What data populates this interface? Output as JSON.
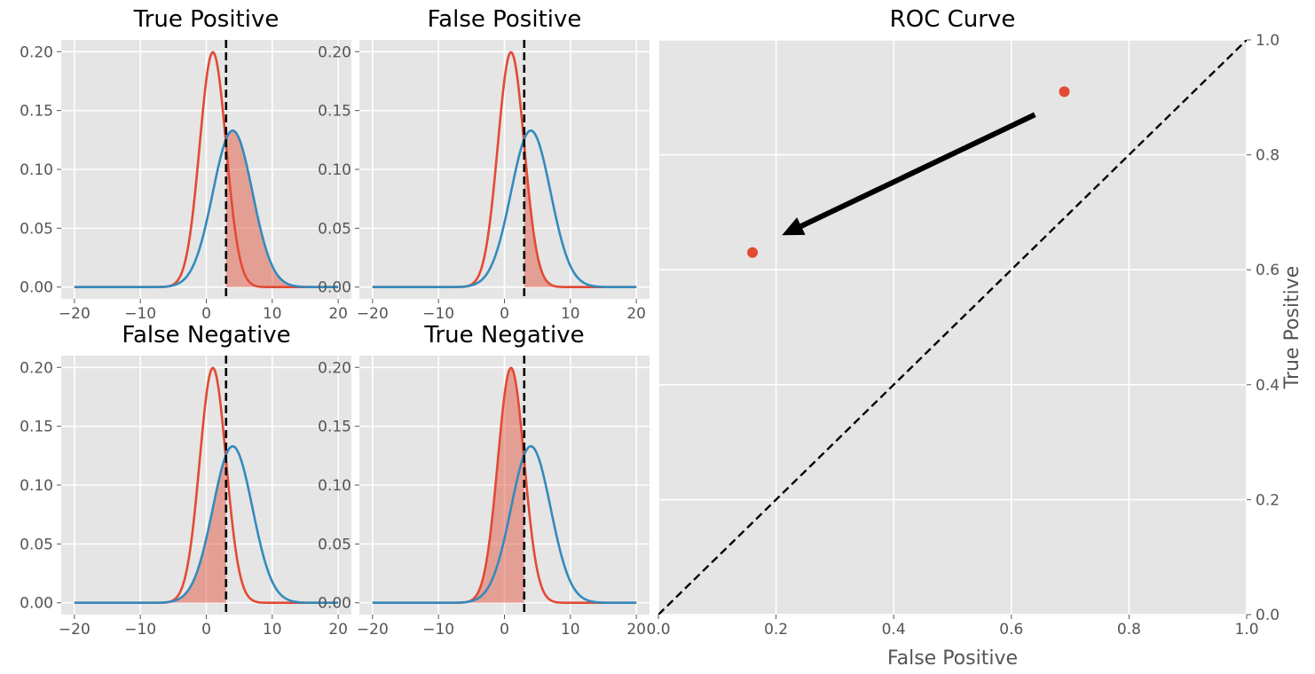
{
  "figure": {
    "background": "#ffffff",
    "axes_background": "#e5e5e5",
    "grid_color": "#ffffff"
  },
  "chart_data": [
    {
      "type": "line",
      "id": "panel-true-positive",
      "title": "True Positive",
      "xlim": [
        -20,
        20
      ],
      "ylim": [
        0,
        0.2
      ],
      "xticks": [
        -20,
        -10,
        0,
        10,
        20
      ],
      "yticks": [
        0.0,
        0.05,
        0.1,
        0.15,
        0.2
      ],
      "xtick_labels": [
        "−20",
        "−10",
        "0",
        "10",
        "20"
      ],
      "ytick_labels": [
        "0.00",
        "0.05",
        "0.10",
        "0.15",
        "0.20"
      ],
      "series": [
        {
          "distribution": "normal",
          "mean": 1,
          "std": 2,
          "color": "#e24a33"
        },
        {
          "distribution": "normal",
          "mean": 4,
          "std": 3,
          "color": "#348abd"
        }
      ],
      "threshold": 3,
      "shaded": {
        "series": 1,
        "from": 3,
        "to": 20,
        "color": "#e24a33"
      }
    },
    {
      "type": "line",
      "id": "panel-false-positive",
      "title": "False Positive",
      "xlim": [
        -20,
        20
      ],
      "ylim": [
        0,
        0.2
      ],
      "xticks": [
        -20,
        -10,
        0,
        10,
        20
      ],
      "yticks": [
        0.0,
        0.05,
        0.1,
        0.15,
        0.2
      ],
      "xtick_labels": [
        "−20",
        "−10",
        "0",
        "10",
        "20"
      ],
      "ytick_labels": [
        "0.00",
        "0.05",
        "0.10",
        "0.15",
        "0.20"
      ],
      "series": [
        {
          "distribution": "normal",
          "mean": 1,
          "std": 2,
          "color": "#e24a33"
        },
        {
          "distribution": "normal",
          "mean": 4,
          "std": 3,
          "color": "#348abd"
        }
      ],
      "threshold": 3,
      "shaded": {
        "series": 0,
        "from": 3,
        "to": 20,
        "color": "#e24a33"
      }
    },
    {
      "type": "line",
      "id": "panel-false-negative",
      "title": "False Negative",
      "xlim": [
        -20,
        20
      ],
      "ylim": [
        0,
        0.2
      ],
      "xticks": [
        -20,
        -10,
        0,
        10,
        20
      ],
      "yticks": [
        0.0,
        0.05,
        0.1,
        0.15,
        0.2
      ],
      "xtick_labels": [
        "−20",
        "−10",
        "0",
        "10",
        "20"
      ],
      "ytick_labels": [
        "0.00",
        "0.05",
        "0.10",
        "0.15",
        "0.20"
      ],
      "series": [
        {
          "distribution": "normal",
          "mean": 1,
          "std": 2,
          "color": "#e24a33"
        },
        {
          "distribution": "normal",
          "mean": 4,
          "std": 3,
          "color": "#348abd"
        }
      ],
      "threshold": 3,
      "shaded": {
        "series": 1,
        "from": -20,
        "to": 3,
        "color": "#e24a33"
      }
    },
    {
      "type": "line",
      "id": "panel-true-negative",
      "title": "True Negative",
      "xlim": [
        -20,
        20
      ],
      "ylim": [
        0,
        0.2
      ],
      "xticks": [
        -20,
        -10,
        0,
        10,
        20
      ],
      "yticks": [
        0.0,
        0.05,
        0.1,
        0.15,
        0.2
      ],
      "xtick_labels": [
        "−20",
        "−10",
        "0",
        "10",
        "20"
      ],
      "ytick_labels": [
        "0.00",
        "0.05",
        "0.10",
        "0.15",
        "0.20"
      ],
      "series": [
        {
          "distribution": "normal",
          "mean": 1,
          "std": 2,
          "color": "#e24a33"
        },
        {
          "distribution": "normal",
          "mean": 4,
          "std": 3,
          "color": "#348abd"
        }
      ],
      "threshold": 3,
      "shaded": {
        "series": 0,
        "from": -20,
        "to": 3,
        "color": "#e24a33"
      }
    },
    {
      "type": "scatter",
      "id": "panel-roc",
      "title": "ROC Curve",
      "xlabel": "False Positive",
      "ylabel": "True Positive",
      "xlim": [
        0,
        1
      ],
      "ylim": [
        0,
        1
      ],
      "xticks": [
        0,
        0.2,
        0.4,
        0.6,
        0.8,
        1.0
      ],
      "yticks": [
        0,
        0.2,
        0.4,
        0.6,
        0.8,
        1.0
      ],
      "xtick_labels": [
        "0.0",
        "0.2",
        "0.4",
        "0.6",
        "0.8",
        "1.0"
      ],
      "ytick_labels": [
        "0.0",
        "0.2",
        "0.4",
        "0.6",
        "0.8",
        "1.0"
      ],
      "yaxis_side": "right",
      "points": [
        {
          "x": 0.16,
          "y": 0.63,
          "color": "#e24a33"
        },
        {
          "x": 0.69,
          "y": 0.91,
          "color": "#e24a33"
        }
      ],
      "diagonal": {
        "from": [
          0,
          0
        ],
        "to": [
          1,
          1
        ],
        "style": "dashed",
        "color": "#000000"
      },
      "arrow": {
        "from": [
          0.64,
          0.87
        ],
        "to": [
          0.21,
          0.66
        ],
        "color": "#000000"
      }
    }
  ]
}
